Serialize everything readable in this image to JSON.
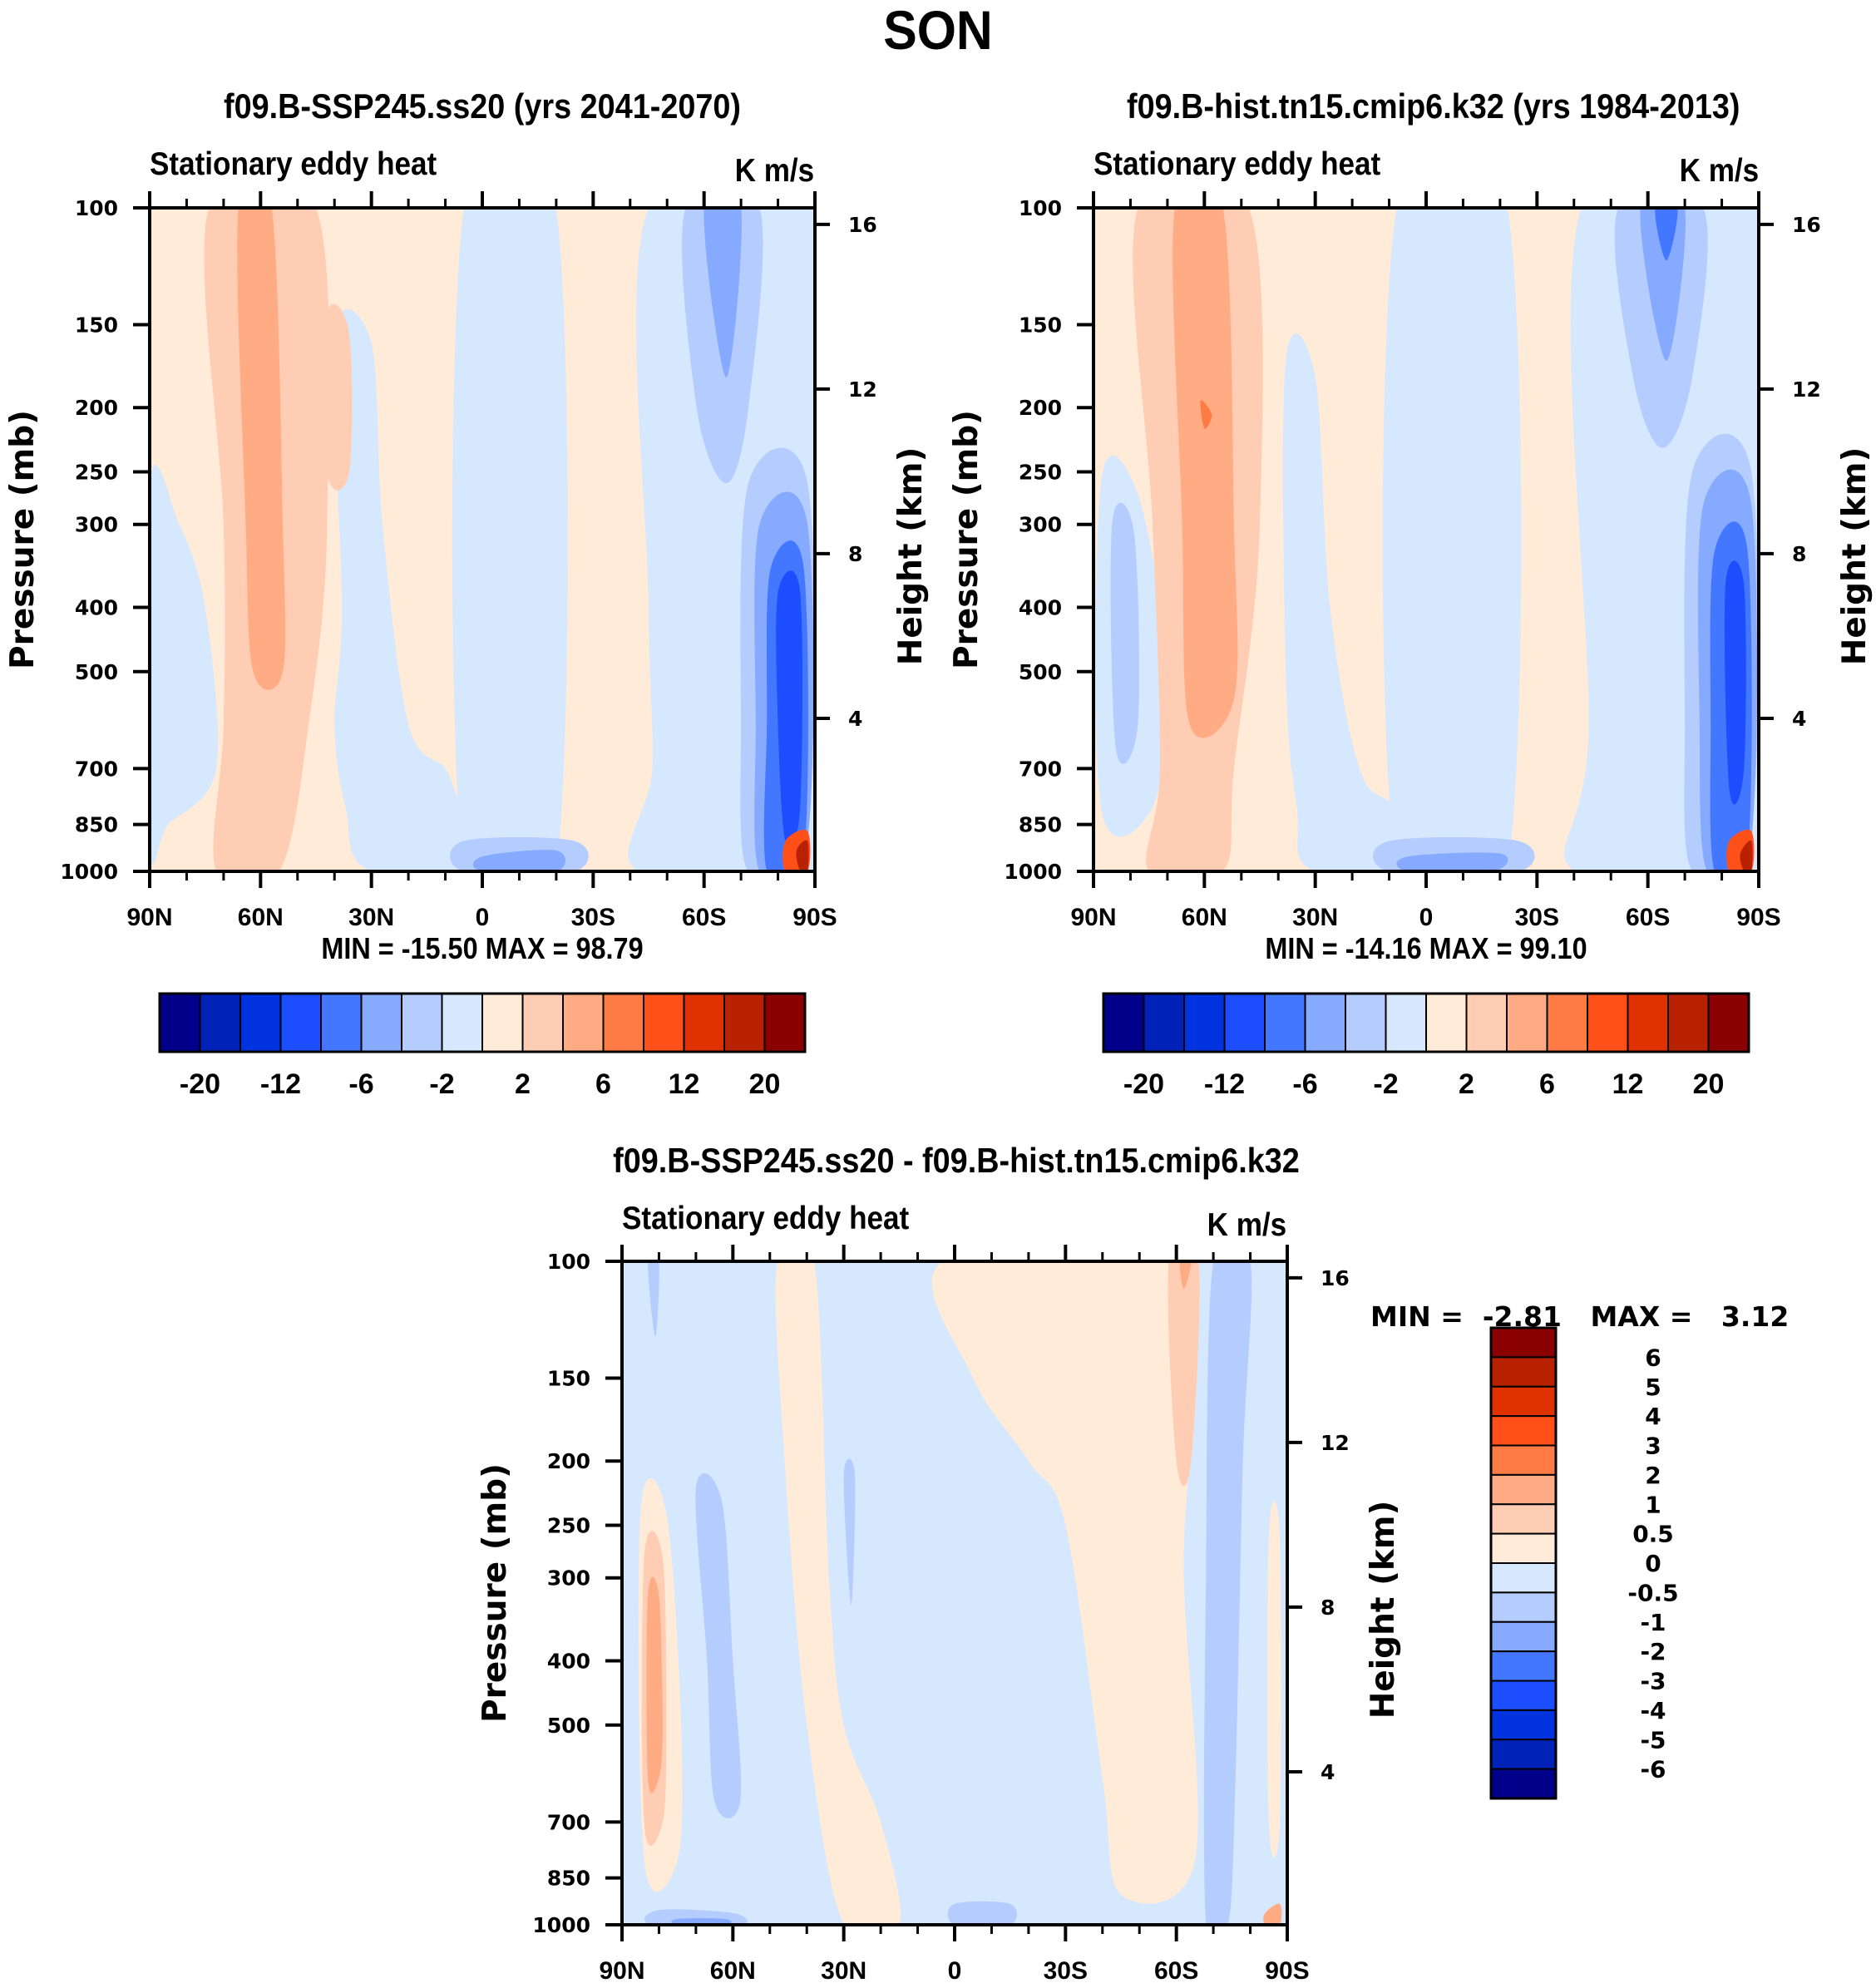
{
  "figure": {
    "title": "SON"
  },
  "chart_data": [
    {
      "type": "heatmap",
      "id": "panel-ssp245",
      "title": "f09.B-SSP245.ss20 (yrs 2041-2070)",
      "left_string": "Stationary eddy heat",
      "right_string": "K m/s",
      "xlabel": "",
      "ylabel": "Pressure (mb)",
      "ylabel_right": "Height (km)",
      "x_ticks": [
        "90N",
        "60N",
        "30N",
        "0",
        "30S",
        "60S",
        "90S"
      ],
      "x_range": [
        90,
        -90
      ],
      "y_ticks": [
        100,
        150,
        200,
        250,
        300,
        400,
        500,
        700,
        850,
        1000
      ],
      "y_range": [
        100,
        1000
      ],
      "y_scale": "log",
      "y_right_ticks": [
        16,
        12,
        8,
        4
      ],
      "min_label": "MIN = -15.50  MAX =  98.79",
      "min": -15.5,
      "max": 98.79,
      "colorbar": {
        "orientation": "horizontal",
        "levels": [
          -20,
          -16,
          -12,
          -8,
          -6,
          -4,
          -2,
          -1,
          1,
          2,
          4,
          6,
          8,
          12,
          16,
          20
        ],
        "labels": [
          "-20",
          "-12",
          "-6",
          "-2",
          "2",
          "6",
          "12",
          "20"
        ],
        "colors": [
          "#00008b",
          "#0022b8",
          "#0033e0",
          "#1c4dff",
          "#4477ff",
          "#85aaff",
          "#b4cdfe",
          "#d6e8fe",
          "#ffebd8",
          "#ffccb4",
          "#ffab84",
          "#ff7b46",
          "#ff5019",
          "#e03200",
          "#b82200",
          "#8b0000"
        ]
      },
      "features": [
        {
          "desc": "positive band 60N tilting from surface to top",
          "sign": "positive",
          "peak_class": "4 to 6"
        },
        {
          "desc": "strong negative cell near 80S 300-700mb",
          "sign": "negative",
          "peak_class": "-8 to -12"
        },
        {
          "desc": "strong positive near surface 85S",
          "sign": "positive",
          "peak_class": ">20"
        },
        {
          "desc": "negative upper-level lobe near 65S",
          "sign": "negative",
          "peak_class": "-4 to -6"
        },
        {
          "desc": "weak negative near surface 10S-20S",
          "sign": "negative",
          "peak_class": "-4 to -6"
        }
      ]
    },
    {
      "type": "heatmap",
      "id": "panel-hist",
      "title": "f09.B-hist.tn15.cmip6.k32 (yrs 1984-2013)",
      "left_string": "Stationary eddy heat",
      "right_string": "K m/s",
      "xlabel": "",
      "ylabel": "Pressure (mb)",
      "ylabel_right": "Height (km)",
      "x_ticks": [
        "90N",
        "60N",
        "30N",
        "0",
        "30S",
        "60S",
        "90S"
      ],
      "x_range": [
        90,
        -90
      ],
      "y_ticks": [
        100,
        150,
        200,
        250,
        300,
        400,
        500,
        700,
        850,
        1000
      ],
      "y_range": [
        100,
        1000
      ],
      "y_scale": "log",
      "y_right_ticks": [
        16,
        12,
        8,
        4
      ],
      "min_label": "MIN = -14.16  MAX =  99.10",
      "min": -14.16,
      "max": 99.1,
      "colorbar": {
        "orientation": "horizontal",
        "levels": [
          -20,
          -16,
          -12,
          -8,
          -6,
          -4,
          -2,
          -1,
          1,
          2,
          4,
          6,
          8,
          12,
          16,
          20
        ],
        "labels": [
          "-20",
          "-12",
          "-6",
          "-2",
          "2",
          "6",
          "12",
          "20"
        ],
        "colors": [
          "#00008b",
          "#0022b8",
          "#0033e0",
          "#1c4dff",
          "#4477ff",
          "#85aaff",
          "#b4cdfe",
          "#d6e8fe",
          "#ffebd8",
          "#ffccb4",
          "#ffab84",
          "#ff7b46",
          "#ff5019",
          "#e03200",
          "#b82200",
          "#8b0000"
        ]
      },
      "features": [
        {
          "desc": "positive band 60N tilting from surface to top, max near 200mb",
          "sign": "positive",
          "peak_class": "6 to 8"
        },
        {
          "desc": "negative cell near 80N 300-600mb",
          "sign": "negative",
          "peak_class": "-1 to -2"
        },
        {
          "desc": "strong negative cell near 80S 300-700mb",
          "sign": "negative",
          "peak_class": "-8 to -12"
        },
        {
          "desc": "strong positive near surface 85S",
          "sign": "positive",
          "peak_class": ">20"
        }
      ]
    },
    {
      "type": "heatmap",
      "id": "panel-diff",
      "title": "f09.B-SSP245.ss20 - f09.B-hist.tn15.cmip6.k32",
      "left_string": "Stationary eddy heat",
      "right_string": "K m/s",
      "xlabel": "",
      "ylabel": "Pressure (mb)",
      "ylabel_right": "Height (km)",
      "x_ticks": [
        "90N",
        "60N",
        "30N",
        "0",
        "30S",
        "60S",
        "90S"
      ],
      "x_range": [
        90,
        -90
      ],
      "y_ticks": [
        100,
        150,
        200,
        250,
        300,
        400,
        500,
        700,
        850,
        1000
      ],
      "y_range": [
        100,
        1000
      ],
      "y_scale": "log",
      "y_right_ticks": [
        16,
        12,
        8,
        4
      ],
      "min_label_parts": {
        "min_text": "MIN =",
        "min_value": "-2.81",
        "max_text": "MAX =",
        "max_value": "3.12"
      },
      "min": -2.81,
      "max": 3.12,
      "colorbar": {
        "orientation": "vertical",
        "levels": [
          -6,
          -5,
          -4,
          -3,
          -2,
          -1,
          -0.5,
          0,
          0.5,
          1,
          2,
          3,
          4,
          5,
          6
        ],
        "labels": [
          "6",
          "5",
          "4",
          "3",
          "2",
          "1",
          "0.5",
          "0",
          "-0.5",
          "-1",
          "-2",
          "-3",
          "-4",
          "-5",
          "-6"
        ],
        "colors": [
          "#00008b",
          "#0022b8",
          "#0033e0",
          "#1c4dff",
          "#4477ff",
          "#85aaff",
          "#b4cdfe",
          "#d6e8fe",
          "#ffebd8",
          "#ffccb4",
          "#ffab84",
          "#ff7b46",
          "#ff5019",
          "#e03200",
          "#b82200",
          "#8b0000"
        ]
      },
      "features": [
        {
          "desc": "positive cell near 80N 250-700mb",
          "sign": "positive",
          "peak_class": "1 to 2"
        },
        {
          "desc": "negative band near 60N 200-650mb",
          "sign": "negative",
          "peak_class": "-0.5 to -1"
        },
        {
          "desc": "positive upper-level near 60S",
          "sign": "positive",
          "peak_class": "1 to 2"
        },
        {
          "desc": "negative band near 70S",
          "sign": "negative",
          "peak_class": "-0.5 to -1"
        }
      ]
    }
  ]
}
